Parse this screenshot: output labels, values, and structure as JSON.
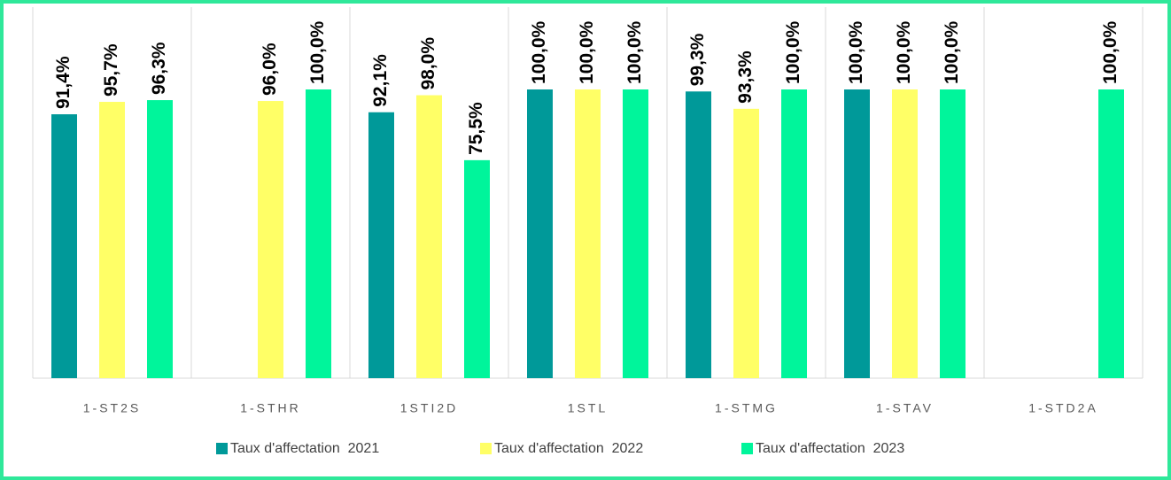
{
  "chart_data": {
    "type": "bar",
    "categories": [
      "1-ST2S",
      "1-STHR",
      "1STI2D",
      "1STL",
      "1-STMG",
      "1-STAV",
      "1-STD2A"
    ],
    "series": [
      {
        "name": "Taux d'affectation  2021",
        "color": "#009999",
        "values": [
          91.4,
          null,
          92.1,
          100,
          99.3,
          100,
          null
        ],
        "value_labels": [
          "91,4%",
          null,
          "92,1%",
          "100,0%",
          "99,3%",
          "100,0%",
          null
        ]
      },
      {
        "name": "Taux d'affectation  2022",
        "color": "#ffff66",
        "values": [
          95.7,
          96.0,
          98.0,
          100,
          93.3,
          100,
          null
        ],
        "value_labels": [
          "95,7%",
          "96,0%",
          "98,0%",
          "100,0%",
          "93,3%",
          "100,0%",
          null
        ]
      },
      {
        "name": "Taux d'affectation  2023",
        "color": "#00f59b",
        "values": [
          96.3,
          100,
          75.5,
          100,
          100,
          100,
          100
        ],
        "value_labels": [
          "96,3%",
          "100,0%",
          "75,5%",
          "100,0%",
          "100,0%",
          "100,0%",
          "100,0%"
        ]
      }
    ],
    "ylim": [
      0,
      100
    ],
    "legend": "bottom"
  }
}
